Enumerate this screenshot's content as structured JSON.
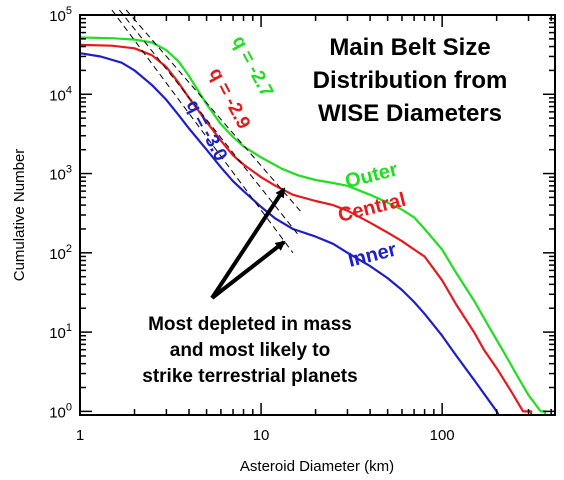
{
  "chart_data": {
    "type": "line",
    "title_lines": [
      "Main Belt Size",
      "Distribution from",
      "WISE Diameters"
    ],
    "xlabel": "Asteroid Diameter (km)",
    "ylabel": "Cumulative Number",
    "x_scale": "log",
    "y_scale": "log",
    "xlim": [
      1,
      420
    ],
    "ylim": [
      0.9,
      100000
    ],
    "x_ticks": [
      {
        "value": 1,
        "label": "1"
      },
      {
        "value": 10,
        "label": "10"
      },
      {
        "value": 100,
        "label": "100"
      }
    ],
    "y_ticks": [
      {
        "value": 1,
        "base": "10",
        "exp": "0"
      },
      {
        "value": 10,
        "base": "10",
        "exp": "1"
      },
      {
        "value": 100,
        "base": "10",
        "exp": "2"
      },
      {
        "value": 1000,
        "base": "10",
        "exp": "3"
      },
      {
        "value": 10000,
        "base": "10",
        "exp": "4"
      },
      {
        "value": 100000,
        "base": "10",
        "exp": "5"
      }
    ],
    "grid": false,
    "series": [
      {
        "name": "Outer",
        "color": "#22dd22",
        "points": [
          [
            1,
            52000
          ],
          [
            1.5,
            51000
          ],
          [
            2,
            49000
          ],
          [
            2.5,
            45000
          ],
          [
            3,
            36000
          ],
          [
            3.5,
            26000
          ],
          [
            4,
            17000
          ],
          [
            4.5,
            11000
          ],
          [
            5,
            7500
          ],
          [
            6,
            4200
          ],
          [
            7,
            2900
          ],
          [
            8,
            2200
          ],
          [
            10,
            1600
          ],
          [
            13,
            1150
          ],
          [
            16,
            950
          ],
          [
            20,
            830
          ],
          [
            25,
            760
          ],
          [
            30,
            700
          ],
          [
            40,
            540
          ],
          [
            50,
            430
          ],
          [
            60,
            350
          ],
          [
            70,
            280
          ],
          [
            80,
            200
          ],
          [
            100,
            110
          ],
          [
            120,
            55
          ],
          [
            150,
            25
          ],
          [
            180,
            12
          ],
          [
            220,
            5.5
          ],
          [
            260,
            2.8
          ],
          [
            300,
            1.6
          ],
          [
            350,
            1.0
          ],
          [
            370,
            1.0
          ],
          [
            370,
            0.9
          ]
        ]
      },
      {
        "name": "Central",
        "color": "#e41a1c",
        "points": [
          [
            1,
            42000
          ],
          [
            1.5,
            41000
          ],
          [
            2,
            38000
          ],
          [
            2.5,
            31000
          ],
          [
            3,
            22000
          ],
          [
            3.5,
            14000
          ],
          [
            4,
            9000
          ],
          [
            5,
            4500
          ],
          [
            6,
            2600
          ],
          [
            7,
            1700
          ],
          [
            8,
            1300
          ],
          [
            10,
            900
          ],
          [
            12,
            700
          ],
          [
            15,
            540
          ],
          [
            20,
            450
          ],
          [
            25,
            400
          ],
          [
            30,
            340
          ],
          [
            40,
            240
          ],
          [
            50,
            180
          ],
          [
            60,
            140
          ],
          [
            70,
            110
          ],
          [
            80,
            90
          ],
          [
            100,
            45
          ],
          [
            120,
            22
          ],
          [
            150,
            10
          ],
          [
            170,
            6
          ],
          [
            200,
            3.5
          ],
          [
            240,
            1.8
          ],
          [
            280,
            1.0
          ],
          [
            310,
            1.0
          ],
          [
            310,
            0.9
          ]
        ]
      },
      {
        "name": "Inner",
        "color": "#1f1fc8",
        "points": [
          [
            1,
            33000
          ],
          [
            1.3,
            30000
          ],
          [
            1.7,
            25000
          ],
          [
            2,
            20000
          ],
          [
            2.5,
            13000
          ],
          [
            3,
            8500
          ],
          [
            3.5,
            5500
          ],
          [
            4,
            3700
          ],
          [
            5,
            2000
          ],
          [
            6,
            1200
          ],
          [
            7,
            800
          ],
          [
            8,
            600
          ],
          [
            10,
            380
          ],
          [
            12,
            270
          ],
          [
            15,
            200
          ],
          [
            20,
            160
          ],
          [
            25,
            130
          ],
          [
            30,
            100
          ],
          [
            40,
            68
          ],
          [
            50,
            48
          ],
          [
            60,
            34
          ],
          [
            70,
            24
          ],
          [
            80,
            17
          ],
          [
            100,
            9
          ],
          [
            120,
            5
          ],
          [
            150,
            2.5
          ],
          [
            180,
            1.4
          ],
          [
            200,
            1.0
          ],
          [
            205,
            0.9
          ]
        ]
      }
    ],
    "power_law_fits": [
      {
        "q": "q = -2.7",
        "color": "#22dd22",
        "from": [
          1.8,
          135000
        ],
        "to": [
          17,
          310
        ]
      },
      {
        "q": "q = -2.9",
        "color": "#e41a1c",
        "from": [
          1.65,
          135000
        ],
        "to": [
          16,
          170
        ]
      },
      {
        "q": "q = -3.0",
        "color": "#1f1fc8",
        "from": [
          1.5,
          135000
        ],
        "to": [
          15,
          100
        ]
      }
    ],
    "series_labels": [
      {
        "text": "Outer",
        "color": "#22dd22"
      },
      {
        "text": "Central",
        "color": "#e41a1c"
      },
      {
        "text": "Inner",
        "color": "#1f1fc8"
      }
    ],
    "annotation": {
      "lines": [
        "Most depleted in mass",
        "and most likely to",
        "strike terrestrial planets"
      ],
      "arrows_to": [
        [
          12.5,
          750
        ],
        [
          12.5,
          150
        ]
      ]
    }
  }
}
